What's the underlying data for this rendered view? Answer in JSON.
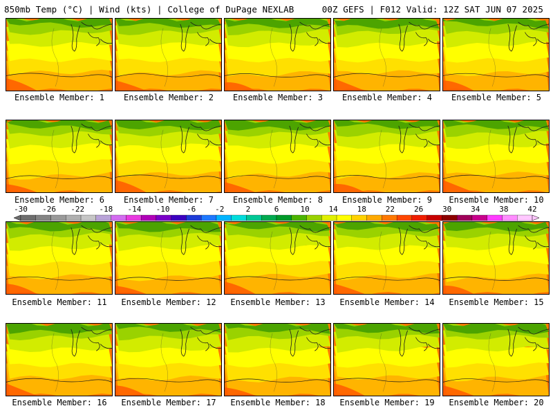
{
  "header": {
    "title_left": "850mb Temp (°C) | Wind (kts) | College of DuPage NEXLAB",
    "title_right": "00Z GEFS | F012 Valid: 12Z SAT JUN 07 2025"
  },
  "colorbar": {
    "labels": [
      "-30",
      "-26",
      "-22",
      "-18",
      "-14",
      "-10",
      "-6",
      "-2",
      "2",
      "6",
      "10",
      "14",
      "18",
      "22",
      "26",
      "30",
      "34",
      "38",
      "42"
    ],
    "colors": [
      "#6e6e6e",
      "#848484",
      "#9a9a9a",
      "#b0b0b0",
      "#c6c6c6",
      "#b9a3d8",
      "#d36cf0",
      "#e83be0",
      "#b000b8",
      "#7a00c8",
      "#3c00c0",
      "#1e3cd8",
      "#1e78ff",
      "#00b4ff",
      "#00dcdc",
      "#00c896",
      "#00aa50",
      "#009a2a",
      "#4cb400",
      "#9ad200",
      "#e0f000",
      "#ffff00",
      "#ffd200",
      "#ffaa00",
      "#ff7800",
      "#ff4600",
      "#f01e00",
      "#c80000",
      "#8c0000",
      "#a0005a",
      "#c8008c",
      "#ff3cff",
      "#ff8cff",
      "#ffc8ff"
    ]
  },
  "members": [
    {
      "label": "Ensemble Member: 1"
    },
    {
      "label": "Ensemble Member: 2"
    },
    {
      "label": "Ensemble Member: 3"
    },
    {
      "label": "Ensemble Member: 4"
    },
    {
      "label": "Ensemble Member: 5"
    },
    {
      "label": "Ensemble Member: 6"
    },
    {
      "label": "Ensemble Member: 7"
    },
    {
      "label": "Ensemble Member: 8"
    },
    {
      "label": "Ensemble Member: 9"
    },
    {
      "label": "Ensemble Member: 10"
    },
    {
      "label": "Ensemble Member: 11"
    },
    {
      "label": "Ensemble Member: 12"
    },
    {
      "label": "Ensemble Member: 13"
    },
    {
      "label": "Ensemble Member: 14"
    },
    {
      "label": "Ensemble Member: 15"
    },
    {
      "label": "Ensemble Member: 16"
    },
    {
      "label": "Ensemble Member: 17"
    },
    {
      "label": "Ensemble Member: 18"
    },
    {
      "label": "Ensemble Member: 19"
    },
    {
      "label": "Ensemble Member: 20"
    }
  ]
}
